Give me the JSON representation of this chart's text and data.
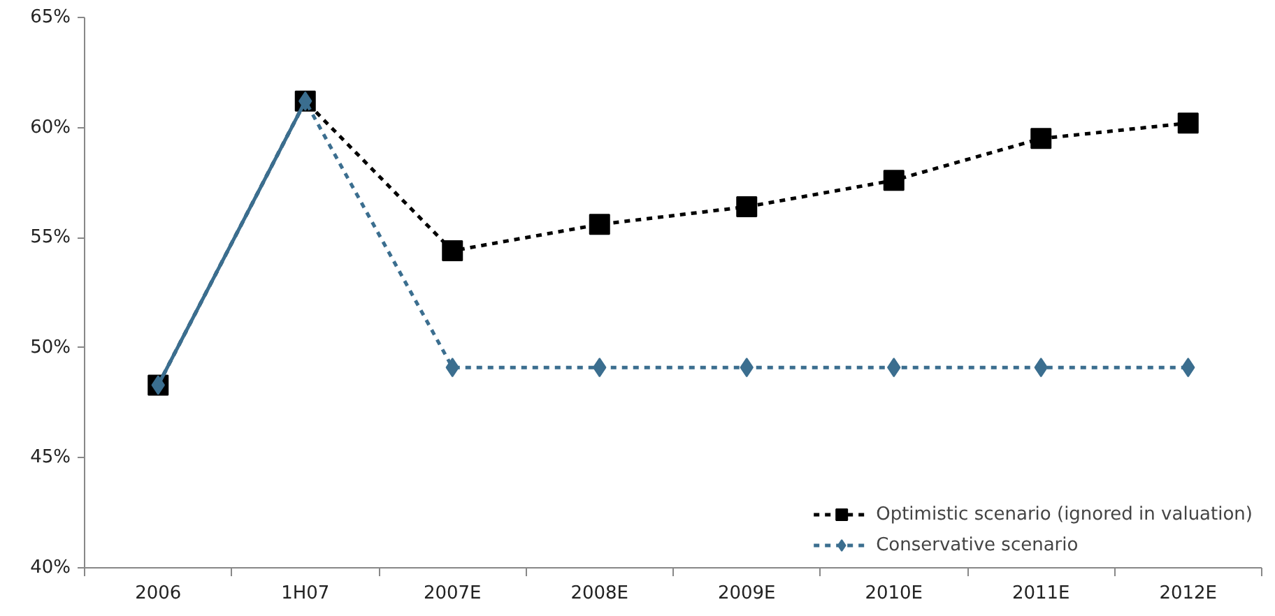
{
  "chart_data": {
    "type": "line",
    "categories": [
      "2006",
      "1H07",
      "2007E",
      "2008E",
      "2009E",
      "2010E",
      "2011E",
      "2012E"
    ],
    "series": [
      {
        "name": "Optimistic scenario (ignored in valuation)",
        "color": "#000000",
        "marker": "square",
        "line_style": "dashed",
        "values": [
          48.3,
          61.2,
          54.4,
          55.6,
          56.4,
          57.6,
          59.5,
          60.2
        ]
      },
      {
        "name": "Conservative scenario",
        "color": "#3b6e8f",
        "marker": "diamond",
        "line_style": "dashed",
        "values": [
          48.3,
          61.2,
          49.1,
          49.1,
          49.1,
          49.1,
          49.1,
          49.1
        ]
      },
      {
        "color": "#3b6e8f",
        "marker": "none",
        "line_style": "solid",
        "values": [
          48.3,
          61.2,
          null,
          null,
          null,
          null,
          null,
          null
        ]
      }
    ],
    "ylim": [
      40,
      65
    ],
    "yticks": [
      {
        "value": 40,
        "label": "40%"
      },
      {
        "value": 45,
        "label": "45%"
      },
      {
        "value": 50,
        "label": "50%"
      },
      {
        "value": 55,
        "label": "55%"
      },
      {
        "value": 60,
        "label": "60%"
      },
      {
        "value": 65,
        "label": "65%"
      }
    ],
    "grid": false,
    "legend": "bottom right"
  }
}
